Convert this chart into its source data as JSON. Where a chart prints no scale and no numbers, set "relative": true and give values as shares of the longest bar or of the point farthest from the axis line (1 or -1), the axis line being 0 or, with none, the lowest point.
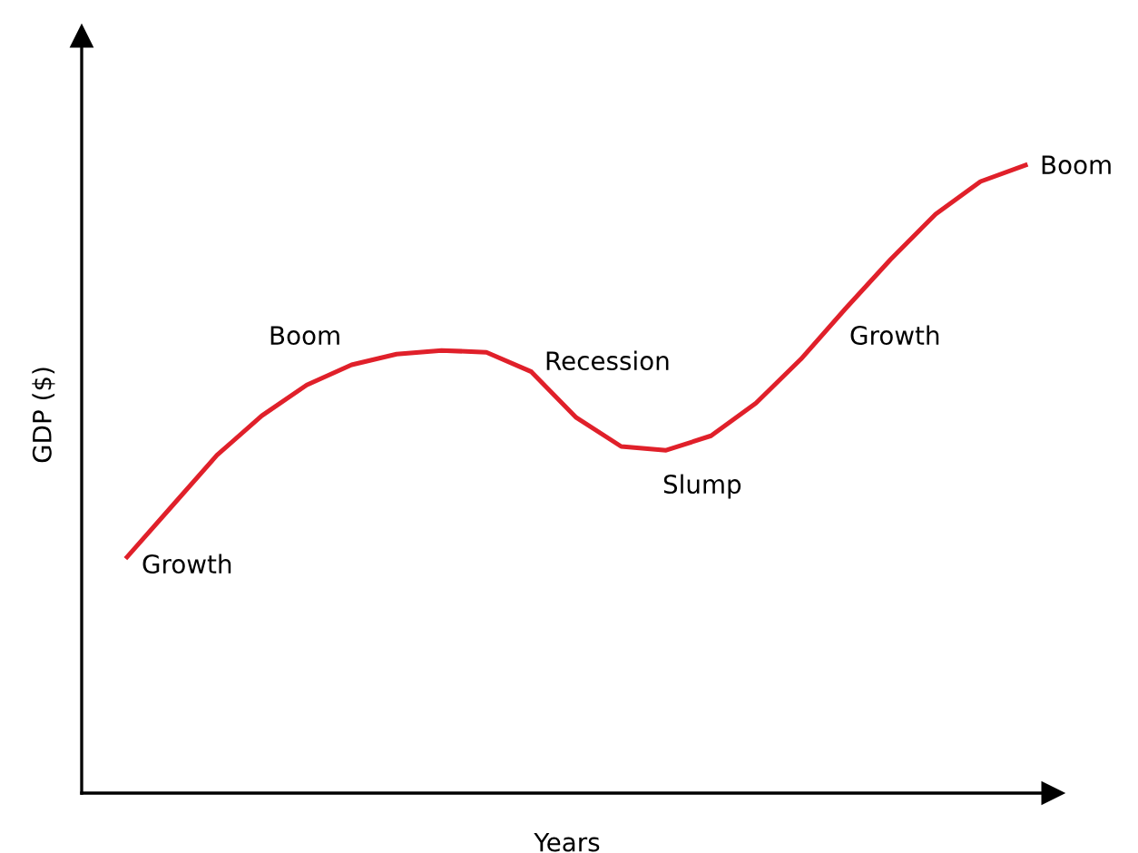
{
  "chart_data": {
    "type": "line",
    "xlabel": "Years",
    "ylabel": "GDP ($)",
    "relative": true,
    "legend": false,
    "grid": false,
    "marker": "none",
    "line_style": "solid",
    "categories": [
      null,
      null,
      null,
      null,
      null,
      null,
      null,
      null,
      null,
      null,
      null,
      null,
      null,
      null,
      null,
      null,
      null,
      null,
      null,
      null,
      null
    ],
    "series": [
      {
        "color": "#e0202a",
        "values": [
          0.376,
          0.457,
          0.538,
          0.601,
          0.65,
          0.682,
          0.699,
          0.705,
          0.702,
          0.671,
          0.598,
          0.552,
          0.546,
          0.569,
          0.621,
          0.691,
          0.772,
          0.85,
          0.922,
          0.974,
          1.0
        ]
      }
    ],
    "annotations": [
      "Growth",
      "Boom",
      "Recession",
      "Slump",
      "Growth",
      "Boom"
    ]
  }
}
